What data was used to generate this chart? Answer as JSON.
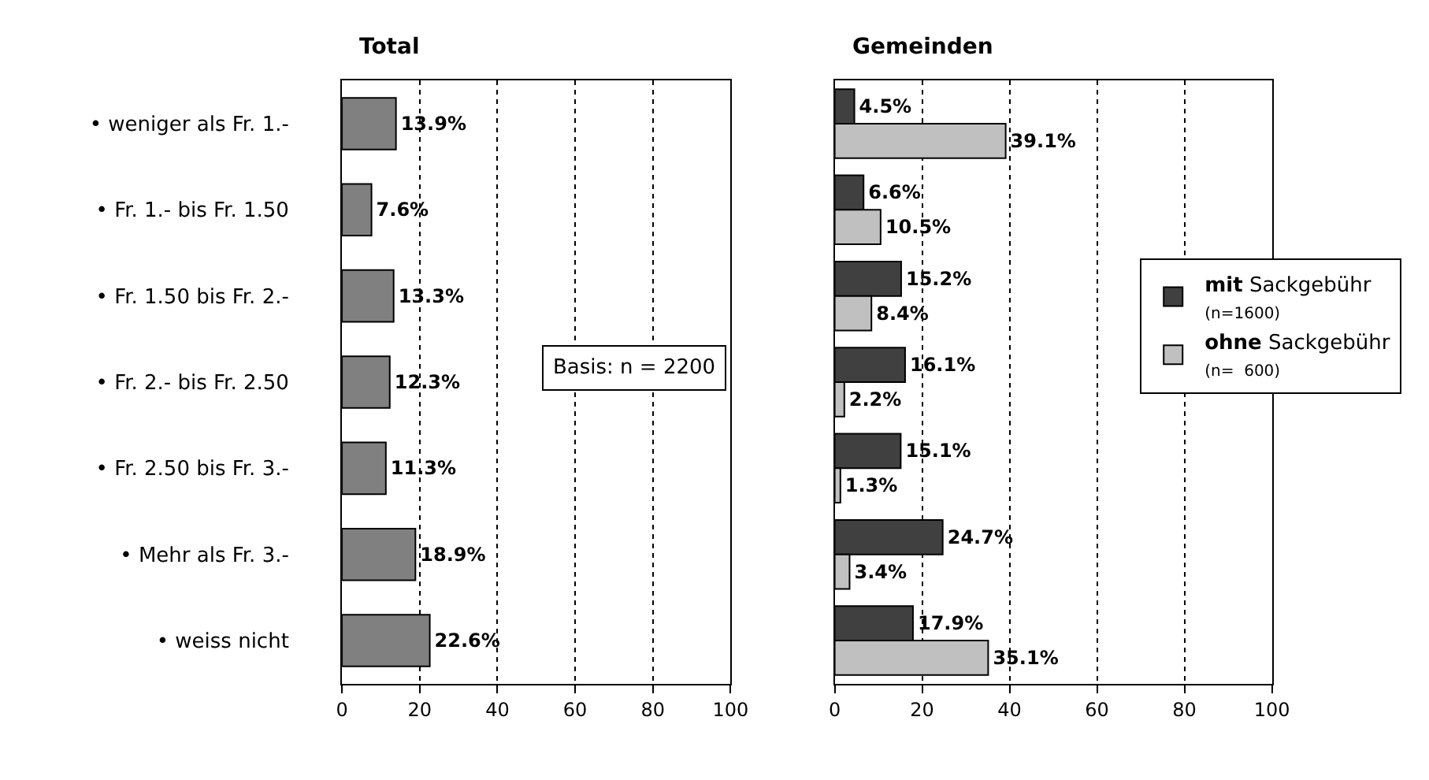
{
  "chart_data": [
    {
      "type": "bar",
      "orientation": "horizontal",
      "title": "Total",
      "categories": [
        "• weniger als Fr. 1.-",
        "• Fr. 1.- bis Fr. 1.50",
        "• Fr. 1.50 bis Fr. 2.-",
        "• Fr. 2.- bis Fr. 2.50",
        "• Fr. 2.50 bis Fr. 3.-",
        "• Mehr als Fr. 3.-",
        "• weiss nicht"
      ],
      "series": [
        {
          "color": "#808080",
          "values": [
            13.9,
            7.6,
            13.3,
            12.3,
            11.3,
            18.9,
            22.6
          ],
          "value_labels": [
            "13.9%",
            "7.6%",
            "13.3%",
            "12.3%",
            "11.3%",
            "18.9%",
            "22.6%"
          ]
        }
      ],
      "xlim": [
        0,
        100
      ],
      "xticks": [
        0,
        20,
        40,
        60,
        80,
        100
      ],
      "grid": "x",
      "legend": false,
      "annotations": [
        "Basis: n = 2200"
      ]
    },
    {
      "type": "bar",
      "orientation": "horizontal",
      "title": "Gemeinden",
      "categories": [
        null,
        null,
        null,
        null,
        null,
        null,
        null
      ],
      "series": [
        {
          "name": "mit Sackgebühr (n=1600)",
          "color": "#404040",
          "values": [
            4.5,
            6.6,
            15.2,
            16.1,
            15.1,
            24.7,
            17.9
          ],
          "value_labels": [
            "4.5%",
            "6.6%",
            "15.2%",
            "16.1%",
            "15.1%",
            "24.7%",
            "17.9%"
          ]
        },
        {
          "name": "ohne Sackgebühr (n=  600)",
          "color": "#c0c0c0",
          "values": [
            39.1,
            10.5,
            8.4,
            2.2,
            1.3,
            3.4,
            35.1
          ],
          "value_labels": [
            "39.1%",
            "10.5%",
            "8.4%",
            "2.2%",
            "1.3%",
            "3.4%",
            "35.1%"
          ]
        }
      ],
      "xlim": [
        0,
        100
      ],
      "xticks": [
        0,
        20,
        40,
        60,
        80,
        100
      ],
      "grid": "x",
      "legend": "right",
      "tick_labels": "x"
    }
  ]
}
